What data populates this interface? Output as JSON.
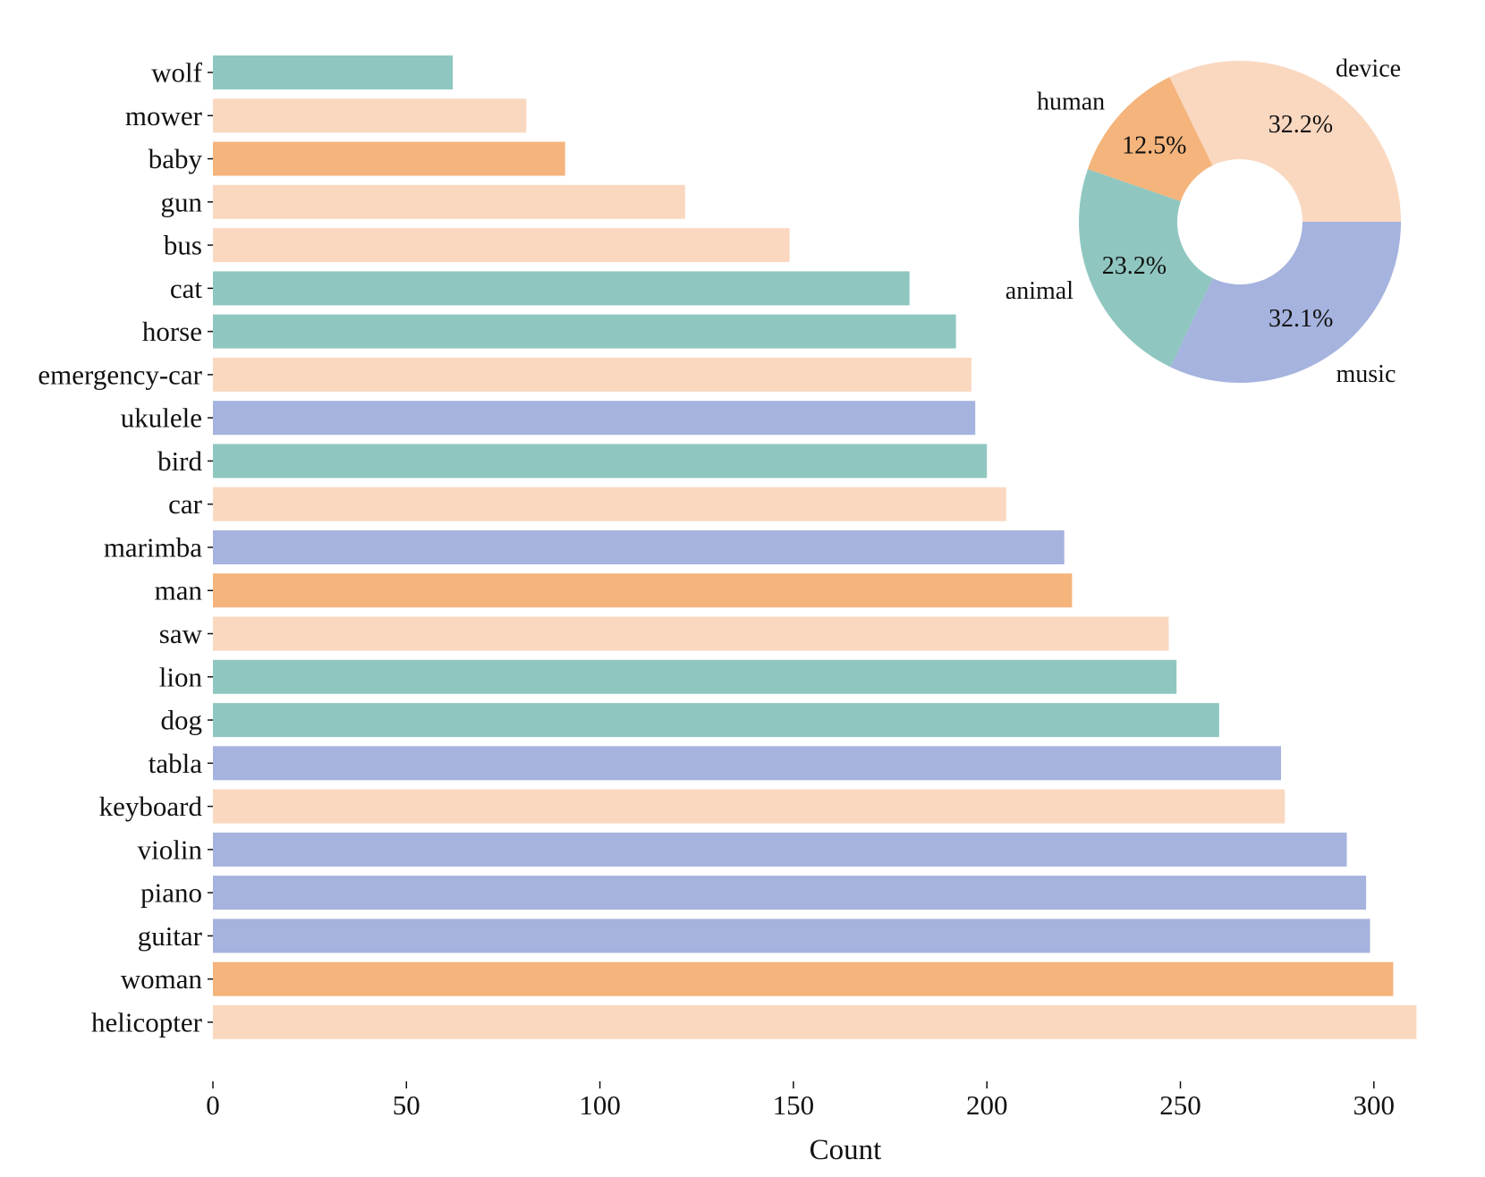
{
  "chart_data": [
    {
      "type": "bar",
      "orientation": "horizontal",
      "categories": [
        "wolf",
        "mower",
        "baby",
        "gun",
        "bus",
        "cat",
        "horse",
        "emergency-car",
        "ukulele",
        "bird",
        "car",
        "marimba",
        "man",
        "saw",
        "lion",
        "dog",
        "tabla",
        "keyboard",
        "violin",
        "piano",
        "guitar",
        "woman",
        "helicopter"
      ],
      "values": [
        62,
        81,
        91,
        122,
        149,
        180,
        192,
        196,
        197,
        200,
        205,
        220,
        222,
        247,
        249,
        260,
        276,
        277,
        293,
        298,
        299,
        305,
        311
      ],
      "groups": [
        "animal",
        "device",
        "human",
        "device",
        "device",
        "animal",
        "animal",
        "device",
        "music",
        "animal",
        "device",
        "music",
        "human",
        "device",
        "animal",
        "animal",
        "music",
        "device",
        "music",
        "music",
        "music",
        "human",
        "device"
      ],
      "xlabel": "Count",
      "ylabel": "",
      "xlim": [
        0,
        320
      ],
      "xticks": [
        0,
        50,
        100,
        150,
        200,
        250,
        300
      ],
      "grid": false
    },
    {
      "type": "pie",
      "style": "donut",
      "placement": "top-right",
      "labels": [
        "device",
        "human",
        "animal",
        "music"
      ],
      "values": [
        32.2,
        12.5,
        23.2,
        32.1
      ],
      "value_labels": [
        "32.2%",
        "12.5%",
        "23.2%",
        "32.1%"
      ]
    }
  ],
  "colors": {
    "animal": "#8fc7c0",
    "device": "#fad8c0",
    "human": "#f4b47c",
    "music": "#a5b3de",
    "text": "#111111"
  }
}
